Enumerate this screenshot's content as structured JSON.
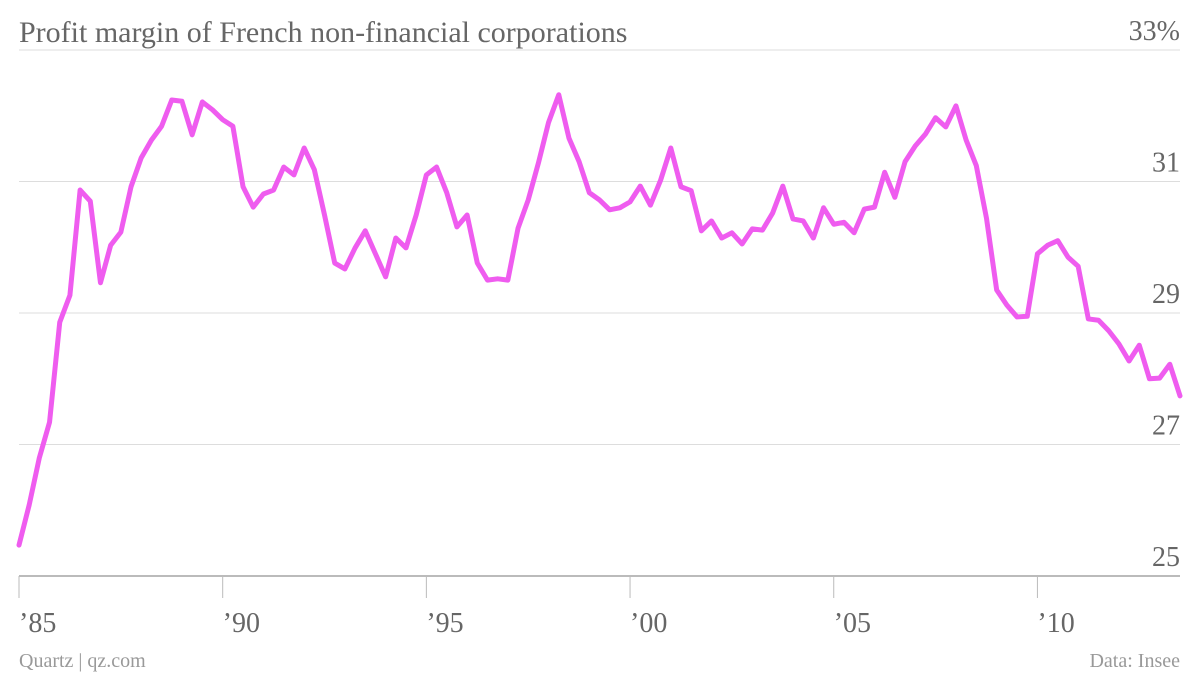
{
  "chart_data": {
    "type": "line",
    "title": "Profit margin of French non-financial corporations",
    "credit": "Quartz | qz.com",
    "source": "Data: Insee",
    "color": "#ef5cef",
    "grid": true,
    "x": [
      1985,
      1985.25,
      1985.5,
      1985.75,
      1986,
      1986.25,
      1986.5,
      1986.75,
      1987,
      1987.25,
      1987.5,
      1987.75,
      1988,
      1988.25,
      1988.5,
      1988.75,
      1989,
      1989.25,
      1989.5,
      1989.75,
      1990,
      1990.25,
      1990.5,
      1990.75,
      1991,
      1991.25,
      1991.5,
      1991.75,
      1992,
      1992.25,
      1992.5,
      1992.75,
      1993,
      1993.25,
      1993.5,
      1993.75,
      1994,
      1994.25,
      1994.5,
      1994.75,
      1995,
      1995.25,
      1995.5,
      1995.75,
      1996,
      1996.25,
      1996.5,
      1996.75,
      1997,
      1997.25,
      1997.5,
      1997.75,
      1998,
      1998.25,
      1998.5,
      1998.75,
      1999,
      1999.25,
      1999.5,
      1999.75,
      2000,
      2000.25,
      2000.5,
      2000.75,
      2001,
      2001.25,
      2001.5,
      2001.75,
      2002,
      2002.25,
      2002.5,
      2002.75,
      2003,
      2003.25,
      2003.5,
      2003.75,
      2004,
      2004.25,
      2004.5,
      2004.75,
      2005,
      2005.25,
      2005.5,
      2005.75,
      2006,
      2006.25,
      2006.5,
      2006.75,
      2007,
      2007.25,
      2007.5,
      2007.75,
      2008,
      2008.25,
      2008.5,
      2008.75,
      2009,
      2009.25,
      2009.5,
      2009.75,
      2010,
      2010.25,
      2010.5,
      2010.75,
      2011,
      2011.25,
      2011.5,
      2011.75,
      2012,
      2012.25,
      2012.5,
      2012.75,
      2013,
      2013.25,
      2013.5
    ],
    "values": [
      25.47,
      26.08,
      26.8,
      27.34,
      28.86,
      29.27,
      30.87,
      30.7,
      29.46,
      30.03,
      30.23,
      30.92,
      31.36,
      31.63,
      31.84,
      32.24,
      32.22,
      31.71,
      32.21,
      32.09,
      31.94,
      31.84,
      30.92,
      30.61,
      30.81,
      30.87,
      31.22,
      31.1,
      31.51,
      31.18,
      30.49,
      29.76,
      29.67,
      29.99,
      30.25,
      29.9,
      29.55,
      30.14,
      29.99,
      30.49,
      31.1,
      31.22,
      30.83,
      30.31,
      30.49,
      29.76,
      29.5,
      29.52,
      29.5,
      30.29,
      30.72,
      31.28,
      31.9,
      32.32,
      31.66,
      31.3,
      30.83,
      30.72,
      30.57,
      30.6,
      30.69,
      30.93,
      30.64,
      31.02,
      31.51,
      30.92,
      30.86,
      30.25,
      30.4,
      30.14,
      30.22,
      30.05,
      30.28,
      30.26,
      30.52,
      30.93,
      30.43,
      30.4,
      30.14,
      30.6,
      30.35,
      30.38,
      30.22,
      30.58,
      30.61,
      31.14,
      30.76,
      31.3,
      31.54,
      31.72,
      31.97,
      31.83,
      32.15,
      31.63,
      31.24,
      30.44,
      29.35,
      29.12,
      28.94,
      28.95,
      29.9,
      30.03,
      30.1,
      29.85,
      29.71,
      28.91,
      28.89,
      28.73,
      28.53,
      28.27,
      28.51,
      28.0,
      28.01,
      28.22,
      27.74
    ],
    "xlim": [
      1985,
      2013.5
    ],
    "xticks": [
      {
        "value": 1985,
        "label": "’85"
      },
      {
        "value": 1990,
        "label": "’90"
      },
      {
        "value": 1995,
        "label": "’95"
      },
      {
        "value": 2000,
        "label": "’00"
      },
      {
        "value": 2005,
        "label": "’05"
      },
      {
        "value": 2010,
        "label": "’10"
      }
    ],
    "ylim": [
      25,
      33
    ],
    "yticks": [
      25,
      27,
      29,
      31,
      {
        "value": 33,
        "label": "33%"
      }
    ]
  }
}
